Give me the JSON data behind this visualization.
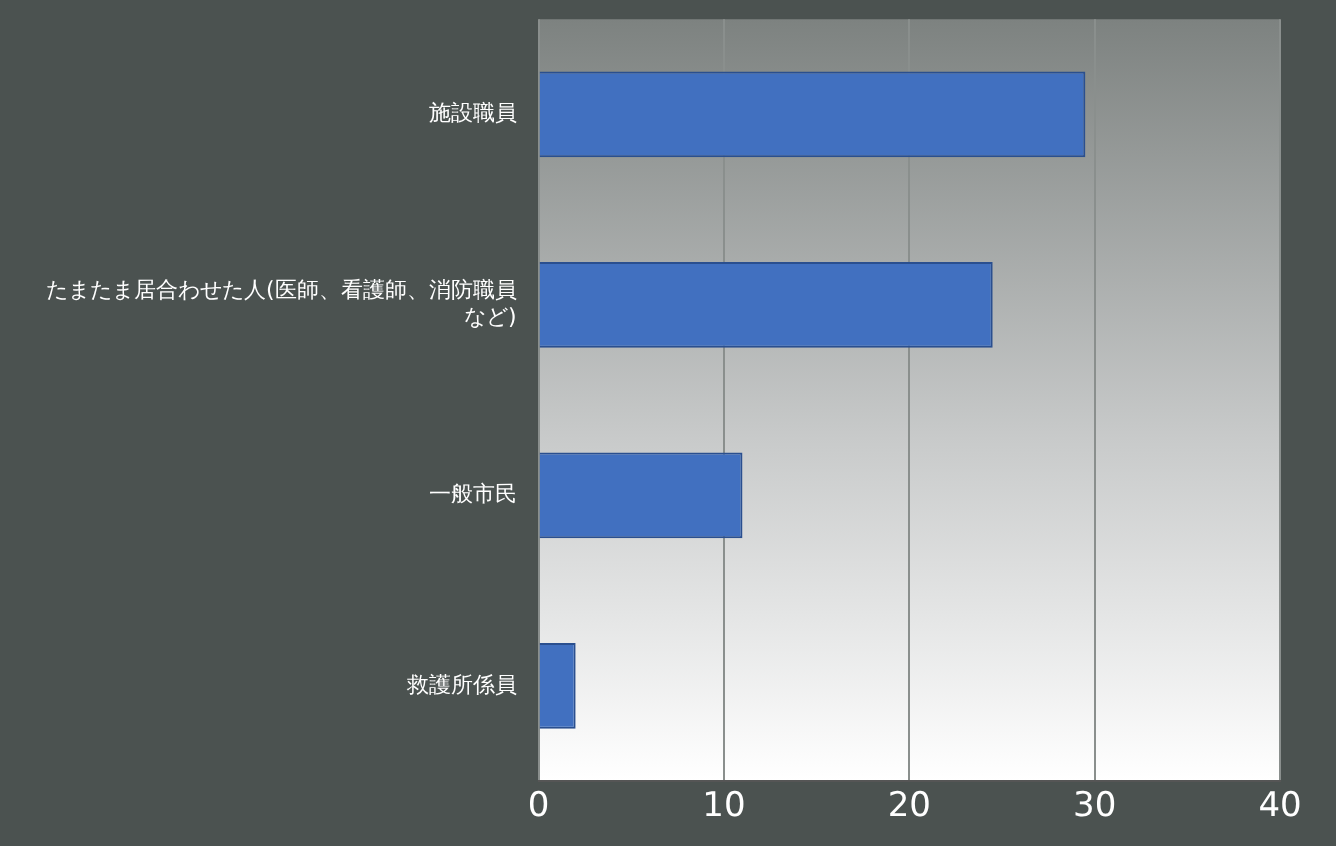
{
  "chart_data": {
    "type": "bar",
    "orientation": "horizontal",
    "categories": [
      "施設職員",
      "たまたま居合わせた人(医師、看護師、消防職員など)",
      "一般市民",
      "救護所係員"
    ],
    "values": [
      29.5,
      24.5,
      11,
      2
    ],
    "color": "#4170c0",
    "xlim": [
      0,
      40
    ],
    "xticks": [
      0,
      10,
      20,
      30,
      40
    ],
    "grid": "x",
    "legend": false
  }
}
